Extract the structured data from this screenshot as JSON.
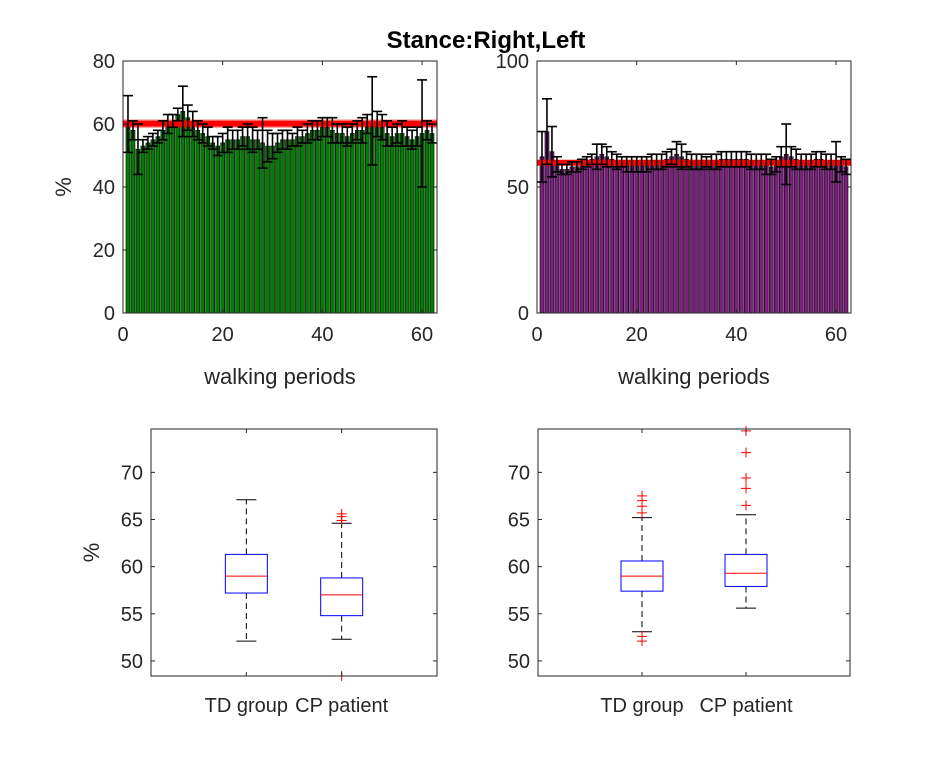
{
  "figure": {
    "title": "Stance:Right,Left"
  },
  "chart_data": [
    {
      "type": "bar",
      "title": "",
      "xlabel": "walking periods",
      "ylabel": "%",
      "xlim": [
        0,
        63
      ],
      "ylim": [
        0,
        80
      ],
      "xticks": [
        0,
        20,
        40,
        60
      ],
      "yticks": [
        0,
        20,
        40,
        60,
        80
      ],
      "bar_color": "#007f00",
      "reference_band": {
        "center": 60.1,
        "low": 58.7,
        "high": 61.5,
        "color": "#ff0000"
      },
      "x": [
        1,
        2,
        3,
        4,
        5,
        6,
        7,
        8,
        9,
        10,
        11,
        12,
        13,
        14,
        15,
        16,
        17,
        18,
        19,
        20,
        21,
        22,
        23,
        24,
        25,
        26,
        27,
        28,
        29,
        30,
        31,
        32,
        33,
        34,
        35,
        36,
        37,
        38,
        39,
        40,
        41,
        42,
        43,
        44,
        45,
        46,
        47,
        48,
        49,
        50,
        51,
        52,
        53,
        54,
        55,
        56,
        57,
        58,
        59,
        60,
        61,
        62
      ],
      "values": [
        60,
        58,
        52,
        53,
        54,
        55,
        56,
        58,
        60,
        61,
        63,
        64,
        62,
        60,
        58,
        57,
        56,
        54,
        53,
        54,
        55,
        55,
        55,
        56,
        56,
        55,
        55,
        54,
        53,
        53,
        54,
        55,
        55,
        55,
        56,
        56,
        57,
        58,
        58,
        59,
        59,
        58,
        57,
        57,
        56,
        57,
        58,
        58,
        60,
        61,
        60,
        59,
        57,
        56,
        57,
        57,
        56,
        55,
        56,
        57,
        58,
        57
      ],
      "errors": [
        9,
        3,
        8,
        2,
        2,
        2,
        2,
        3,
        3,
        2,
        2,
        8,
        4,
        4,
        3,
        3,
        3,
        2,
        3,
        3,
        4,
        3,
        3,
        3,
        4,
        4,
        3,
        8,
        5,
        4,
        3,
        3,
        3,
        2,
        3,
        2,
        3,
        3,
        3,
        3,
        3,
        4,
        3,
        3,
        3,
        3,
        3,
        4,
        3,
        14,
        4,
        4,
        4,
        3,
        3,
        4,
        3,
        3,
        3,
        17,
        3,
        3
      ]
    },
    {
      "type": "bar",
      "title": "",
      "xlabel": "walking periods",
      "ylabel": "",
      "xlim": [
        0,
        63
      ],
      "ylim": [
        0,
        100
      ],
      "xticks": [
        0,
        20,
        40,
        60
      ],
      "yticks": [
        0,
        50,
        100
      ],
      "bar_color": "#7e1e80",
      "reference_band": {
        "center": 59.6,
        "low": 58.8,
        "high": 60.4,
        "color": "#ff0000"
      },
      "x": [
        1,
        2,
        3,
        4,
        5,
        6,
        7,
        8,
        9,
        10,
        11,
        12,
        13,
        14,
        15,
        16,
        17,
        18,
        19,
        20,
        21,
        22,
        23,
        24,
        25,
        26,
        27,
        28,
        29,
        30,
        31,
        32,
        33,
        34,
        35,
        36,
        37,
        38,
        39,
        40,
        41,
        42,
        43,
        44,
        45,
        46,
        47,
        48,
        49,
        50,
        51,
        52,
        53,
        54,
        55,
        56,
        57,
        58,
        59,
        60,
        61,
        62
      ],
      "values": [
        62,
        72,
        64,
        59,
        57,
        57,
        58,
        58,
        59,
        60,
        61,
        62,
        63,
        62,
        61,
        60,
        60,
        59,
        59,
        59,
        59,
        59,
        60,
        60,
        60,
        61,
        62,
        63,
        62,
        61,
        60,
        60,
        60,
        60,
        60,
        60,
        61,
        61,
        61,
        61,
        61,
        61,
        60,
        60,
        60,
        59,
        58,
        59,
        62,
        63,
        62,
        61,
        60,
        60,
        60,
        61,
        61,
        60,
        60,
        60,
        59,
        58
      ],
      "errors": [
        10,
        13,
        10,
        3,
        2,
        2,
        2,
        2,
        2,
        2,
        2,
        5,
        4,
        4,
        3,
        3,
        2,
        3,
        3,
        3,
        3,
        3,
        3,
        3,
        3,
        3,
        3,
        5,
        5,
        3,
        3,
        3,
        3,
        2,
        3,
        3,
        3,
        3,
        3,
        3,
        3,
        3,
        3,
        3,
        3,
        4,
        3,
        3,
        4,
        12,
        4,
        4,
        3,
        3,
        3,
        3,
        3,
        3,
        3,
        8,
        3,
        3
      ]
    },
    {
      "type": "boxplot",
      "title": "",
      "xlabel": "",
      "ylabel": "%",
      "ylim": [
        48.4,
        74.6
      ],
      "yticks": [
        50,
        55,
        60,
        65,
        70
      ],
      "categories": [
        "TD group",
        "CP patient"
      ],
      "box_color": "#0000ff",
      "median_color": "#ff0000",
      "outlier_color": "#ff0000",
      "boxes": [
        {
          "q1": 57.2,
          "median": 59.0,
          "q3": 61.3,
          "whisker_low": 52.1,
          "whisker_high": 67.1,
          "outliers": []
        },
        {
          "q1": 54.8,
          "median": 57.0,
          "q3": 58.8,
          "whisker_low": 52.3,
          "whisker_high": 64.6,
          "outliers": [
            64.9,
            65.3,
            65.6,
            48.4
          ]
        }
      ]
    },
    {
      "type": "boxplot",
      "title": "",
      "xlabel": "",
      "ylabel": "",
      "ylim": [
        48.4,
        74.6
      ],
      "yticks": [
        50,
        55,
        60,
        65,
        70
      ],
      "categories": [
        "TD group",
        "CP patient"
      ],
      "box_color": "#0000ff",
      "median_color": "#ff0000",
      "outlier_color": "#ff0000",
      "boxes": [
        {
          "q1": 57.4,
          "median": 59.0,
          "q3": 60.6,
          "whisker_low": 53.1,
          "whisker_high": 65.2,
          "outliers": [
            65.7,
            66.4,
            67.0,
            67.5,
            52.1,
            52.6
          ]
        },
        {
          "q1": 57.9,
          "median": 59.3,
          "q3": 61.3,
          "whisker_low": 55.6,
          "whisker_high": 65.5,
          "outliers": [
            66.5,
            68.3,
            69.4,
            72.1,
            74.4
          ]
        }
      ]
    }
  ]
}
